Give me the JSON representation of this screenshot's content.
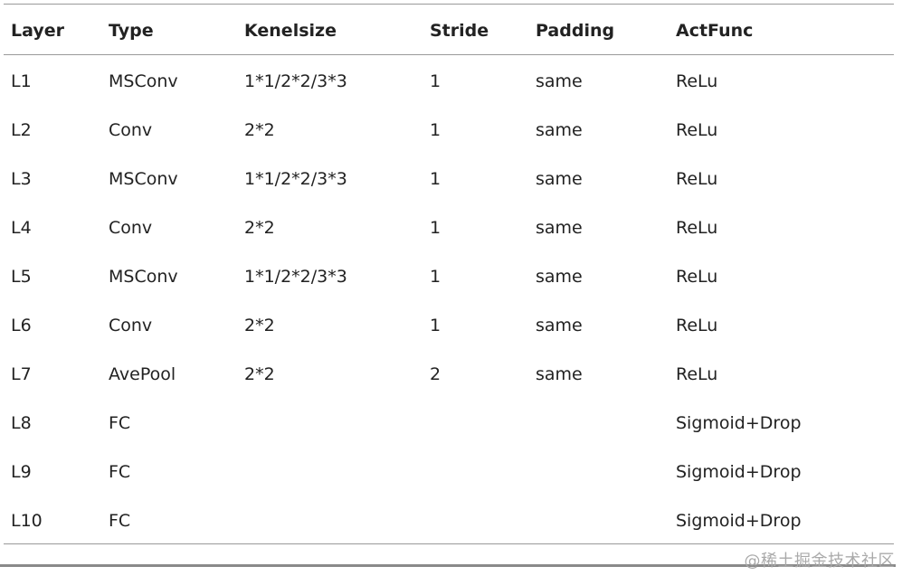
{
  "table": {
    "columns": [
      "Layer",
      "Type",
      "Kenelsize",
      "Stride",
      "Padding",
      "ActFunc"
    ],
    "rows": [
      [
        "L1",
        "MSConv",
        "1*1/2*2/3*3",
        "1",
        "same",
        "ReLu"
      ],
      [
        "L2",
        "Conv",
        "2*2",
        "1",
        "same",
        "ReLu"
      ],
      [
        "L3",
        "MSConv",
        "1*1/2*2/3*3",
        "1",
        "same",
        "ReLu"
      ],
      [
        "L4",
        "Conv",
        "2*2",
        "1",
        "same",
        "ReLu"
      ],
      [
        "L5",
        "MSConv",
        "1*1/2*2/3*3",
        "1",
        "same",
        "ReLu"
      ],
      [
        "L6",
        "Conv",
        "2*2",
        "1",
        "same",
        "ReLu"
      ],
      [
        "L7",
        "AvePool",
        "2*2",
        "2",
        "same",
        "ReLu"
      ],
      [
        "L8",
        "FC",
        "",
        "",
        "",
        "Sigmoid+Drop"
      ],
      [
        "L9",
        "FC",
        "",
        "",
        "",
        "Sigmoid+Drop"
      ],
      [
        "L10",
        "FC",
        "",
        "",
        "",
        "Sigmoid+Drop"
      ]
    ]
  },
  "watermark": "@稀土掘金技术社区"
}
